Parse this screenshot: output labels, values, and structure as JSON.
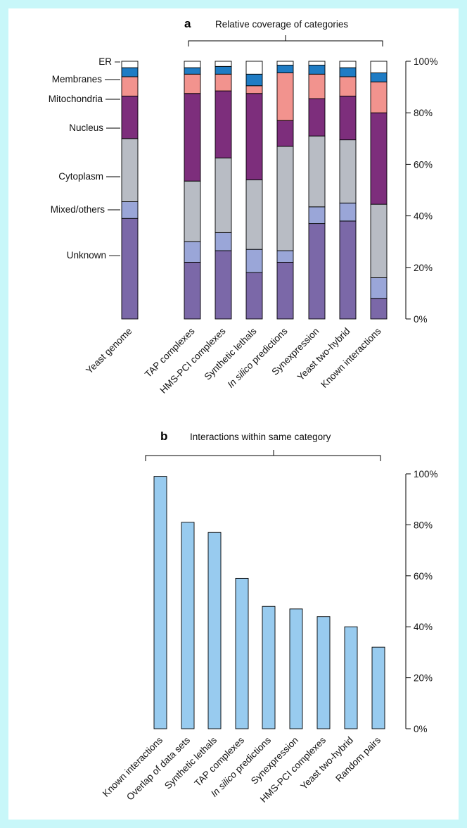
{
  "colors": {
    "frame": "#c8f7f9",
    "Unknown": "#7b68a8",
    "Mixed/others": "#9aa6d8",
    "Cytoplasm": "#b8bcc4",
    "Nucleus": "#7d2e7c",
    "Mitochondria": "#f2938e",
    "Membranes": "#1f7cc4",
    "ER": "#ffffff",
    "bar_b": "#98cbef"
  },
  "chart_data": [
    {
      "type": "bar",
      "stacked": true,
      "panel": "a",
      "title": "Relative coverage of categories",
      "ylim": [
        0,
        100
      ],
      "yticks": [
        "0%",
        "20%",
        "40%",
        "60%",
        "80%",
        "100%"
      ],
      "ytick_values": [
        0,
        20,
        40,
        60,
        80,
        100
      ],
      "legend_labels": [
        "ER",
        "Membranes",
        "Mitochondria",
        "Nucleus",
        "Cytoplasm",
        "Mixed/others",
        "Unknown"
      ],
      "categories": [
        "Yeast genome",
        "TAP complexes",
        "HMS-PCI complexes",
        "Synthetic lethals",
        "In silico predictions",
        "Synexpression",
        "Yeast two-hybrid",
        "Known interactions"
      ],
      "series": [
        {
          "name": "Unknown",
          "values": [
            39,
            22,
            26.5,
            18,
            22,
            37,
            38,
            8
          ]
        },
        {
          "name": "Mixed/others",
          "values": [
            6.5,
            8,
            7,
            9,
            4.5,
            6.5,
            7,
            8
          ]
        },
        {
          "name": "Cytoplasm",
          "values": [
            24.5,
            23.5,
            29,
            27,
            40.5,
            27.5,
            24.5,
            28.5
          ]
        },
        {
          "name": "Nucleus",
          "values": [
            16.5,
            34,
            26,
            33.5,
            10,
            14.5,
            17,
            35.5
          ]
        },
        {
          "name": "Mitochondria",
          "values": [
            7.5,
            7.5,
            6.5,
            3,
            18.5,
            9.5,
            7.5,
            12
          ]
        },
        {
          "name": "Membranes",
          "values": [
            3.5,
            2.5,
            3,
            4.5,
            3,
            3.5,
            3.5,
            3.5
          ]
        },
        {
          "name": "ER",
          "values": [
            2.5,
            2.5,
            2,
            5,
            1.5,
            1.5,
            2.5,
            4.5
          ]
        }
      ]
    },
    {
      "type": "bar",
      "panel": "b",
      "title": "Interactions within same category",
      "ylim": [
        0,
        100
      ],
      "yticks": [
        "0%",
        "20%",
        "40%",
        "60%",
        "80%",
        "100%"
      ],
      "ytick_values": [
        0,
        20,
        40,
        60,
        80,
        100
      ],
      "categories": [
        "Known interactions",
        "Overlap of data sets",
        "Synthetic lethals",
        "TAP complexes",
        "In silico predictions",
        "Synexpression",
        "HMS-PCI complexes",
        "Yeast two-hybrid",
        "Random pairs"
      ],
      "values": [
        99,
        81,
        77,
        59,
        48,
        47,
        44,
        40,
        32
      ]
    }
  ]
}
